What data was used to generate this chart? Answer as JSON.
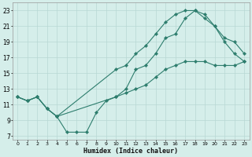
{
  "xlabel": "Humidex (Indice chaleur)",
  "xlim": [
    -0.5,
    23.5
  ],
  "ylim": [
    6.5,
    24.0
  ],
  "yticks": [
    7,
    9,
    11,
    13,
    15,
    17,
    19,
    21,
    23
  ],
  "xticks": [
    0,
    1,
    2,
    3,
    4,
    5,
    6,
    7,
    8,
    9,
    10,
    11,
    12,
    13,
    14,
    15,
    16,
    17,
    18,
    19,
    20,
    21,
    22,
    23
  ],
  "line_color": "#2d7d6d",
  "bg_color": "#d5eeea",
  "grid_color": "#b8d8d4",
  "line1_x": [
    0,
    1,
    2,
    3,
    4,
    5,
    6,
    7,
    8,
    9,
    10,
    11,
    12,
    13,
    14,
    15,
    16,
    17,
    18,
    19,
    20,
    21,
    22,
    23
  ],
  "line1_y": [
    12.0,
    11.5,
    12.0,
    10.5,
    9.5,
    7.5,
    7.5,
    7.5,
    10.0,
    11.5,
    12.0,
    12.5,
    13.0,
    13.5,
    14.5,
    15.5,
    16.0,
    16.5,
    16.5,
    16.5,
    16.0,
    16.0,
    16.0,
    16.5
  ],
  "line2_x": [
    0,
    1,
    2,
    3,
    4,
    10,
    11,
    12,
    13,
    14,
    15,
    16,
    17,
    18,
    19,
    20,
    21,
    22,
    23
  ],
  "line2_y": [
    12.0,
    11.5,
    12.0,
    10.5,
    9.5,
    12.0,
    13.0,
    15.5,
    16.0,
    17.5,
    19.5,
    20.0,
    22.0,
    23.0,
    22.5,
    21.0,
    19.5,
    19.0,
    17.5
  ],
  "line3_x": [
    0,
    1,
    2,
    3,
    4,
    10,
    11,
    12,
    13,
    14,
    15,
    16,
    17,
    18,
    19,
    20,
    21,
    22,
    23
  ],
  "line3_y": [
    12.0,
    11.5,
    12.0,
    10.5,
    9.5,
    15.5,
    16.0,
    17.5,
    18.5,
    20.0,
    21.5,
    22.5,
    23.0,
    23.0,
    22.0,
    21.0,
    19.0,
    17.5,
    16.5
  ]
}
